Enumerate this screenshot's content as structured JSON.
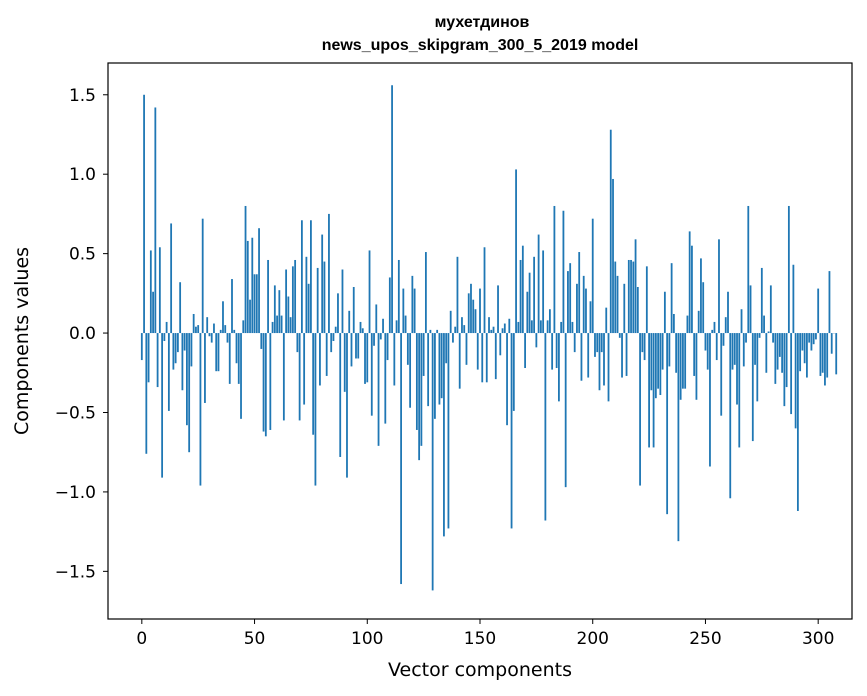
{
  "chart_data": {
    "type": "bar",
    "title": [
      "мухетдинов",
      "news_upos_skipgram_300_5_2019 model"
    ],
    "xlabel": "Vector components",
    "ylabel": "Components values",
    "xlim": [
      -15,
      315
    ],
    "ylim": [
      -1.8,
      1.7
    ],
    "xticks": [
      0,
      50,
      100,
      150,
      200,
      250,
      300
    ],
    "yticks": [
      -1.5,
      -1.0,
      -0.5,
      0.0,
      0.5,
      1.0,
      1.5
    ],
    "ytick_labels": [
      "−1.5",
      "−1.0",
      "−0.5",
      "0.0",
      "0.5",
      "1.0",
      "1.5"
    ],
    "bar_color": "#1f77b4",
    "values": [
      -0.17,
      1.5,
      -0.76,
      -0.31,
      0.52,
      0.26,
      1.42,
      -0.34,
      0.54,
      -0.91,
      -0.05,
      0.07,
      -0.49,
      0.69,
      -0.23,
      -0.19,
      -0.12,
      0.32,
      -0.36,
      -0.11,
      -0.58,
      -0.75,
      -0.21,
      0.12,
      0.04,
      0.05,
      -0.96,
      0.72,
      -0.44,
      0.1,
      -0.02,
      -0.06,
      0.06,
      -0.24,
      -0.24,
      0.02,
      0.2,
      0.05,
      -0.06,
      -0.32,
      0.34,
      0.02,
      -0.19,
      -0.32,
      -0.54,
      0.08,
      0.8,
      0.58,
      0.21,
      0.6,
      0.37,
      0.37,
      0.66,
      -0.1,
      -0.62,
      -0.65,
      0.46,
      -0.61,
      0.07,
      0.3,
      0.11,
      0.27,
      0.11,
      -0.55,
      0.4,
      0.23,
      0.1,
      0.42,
      0.46,
      -0.12,
      -0.55,
      0.71,
      -0.45,
      0.48,
      0.31,
      0.71,
      -0.64,
      -0.96,
      0.41,
      -0.33,
      0.62,
      0.45,
      -0.27,
      0.75,
      -0.12,
      -0.05,
      0.04,
      0.25,
      -0.78,
      0.4,
      -0.37,
      -0.91,
      0.14,
      -0.21,
      0.29,
      -0.16,
      -0.16,
      0.07,
      0.03,
      -0.32,
      -0.31,
      0.52,
      -0.52,
      -0.08,
      0.18,
      -0.71,
      -0.04,
      0.09,
      -0.57,
      -0.17,
      0.35,
      1.56,
      -0.33,
      0.08,
      0.46,
      -1.58,
      0.28,
      0.11,
      -0.2,
      -0.47,
      0.36,
      0.28,
      -0.61,
      -0.8,
      -0.71,
      -0.27,
      0.51,
      -0.46,
      0.02,
      -1.62,
      -0.54,
      0.02,
      -0.45,
      -0.41,
      -1.28,
      -0.19,
      -1.23,
      0.14,
      -0.06,
      0.04,
      0.48,
      -0.35,
      0.1,
      0.05,
      -0.2,
      0.25,
      0.31,
      0.21,
      0.15,
      -0.23,
      0.28,
      -0.31,
      0.54,
      -0.31,
      0.1,
      0.02,
      0.04,
      -0.29,
      0.3,
      -0.14,
      0.03,
      0.06,
      -0.58,
      0.09,
      -1.23,
      -0.49,
      1.03,
      0.07,
      0.46,
      0.55,
      -0.22,
      0.26,
      0.38,
      0.08,
      0.48,
      -0.09,
      0.62,
      0.08,
      0.52,
      -1.18,
      0.08,
      0.15,
      -0.23,
      0.8,
      -0.22,
      -0.43,
      0.07,
      0.77,
      -0.97,
      0.39,
      0.44,
      0.07,
      -0.12,
      0.31,
      0.51,
      -0.3,
      0.36,
      0.28,
      -0.28,
      0.2,
      0.72,
      -0.15,
      -0.12,
      -0.36,
      -0.12,
      -0.33,
      0.16,
      -0.43,
      1.28,
      0.97,
      0.45,
      0.36,
      -0.03,
      -0.28,
      0.31,
      -0.27,
      0.46,
      0.46,
      0.45,
      0.59,
      0.29,
      -0.96,
      -0.12,
      -0.17,
      0.42,
      -0.72,
      -0.36,
      -0.72,
      -0.41,
      -0.35,
      -0.39,
      -0.23,
      0.26,
      -1.14,
      -0.21,
      0.44,
      0.12,
      -0.25,
      -1.31,
      -0.42,
      -0.35,
      -0.35,
      0.11,
      0.64,
      0.55,
      -0.27,
      -0.42,
      0.14,
      0.47,
      0.32,
      -0.11,
      -0.23,
      -0.84,
      0.02,
      0.07,
      -0.17,
      0.59,
      -0.52,
      -0.08,
      0.1,
      0.26,
      -1.04,
      -0.23,
      -0.2,
      -0.45,
      -0.72,
      0.15,
      -0.21,
      -0.06,
      0.8,
      0.3,
      -0.68,
      -0.2,
      -0.43,
      -0.03,
      0.41,
      0.11,
      -0.25,
      0.01,
      0.3,
      -0.06,
      -0.32,
      -0.23,
      -0.15,
      -0.25,
      -0.46,
      -0.34,
      0.8,
      -0.51,
      0.43,
      -0.6,
      -1.12,
      -0.24,
      -0.11,
      -0.19,
      -0.28,
      -0.06,
      -0.11,
      -0.07,
      -0.04,
      0.28,
      -0.27,
      -0.25,
      -0.33,
      -0.28,
      0.39,
      -0.13,
      0.0,
      -0.26
    ]
  }
}
